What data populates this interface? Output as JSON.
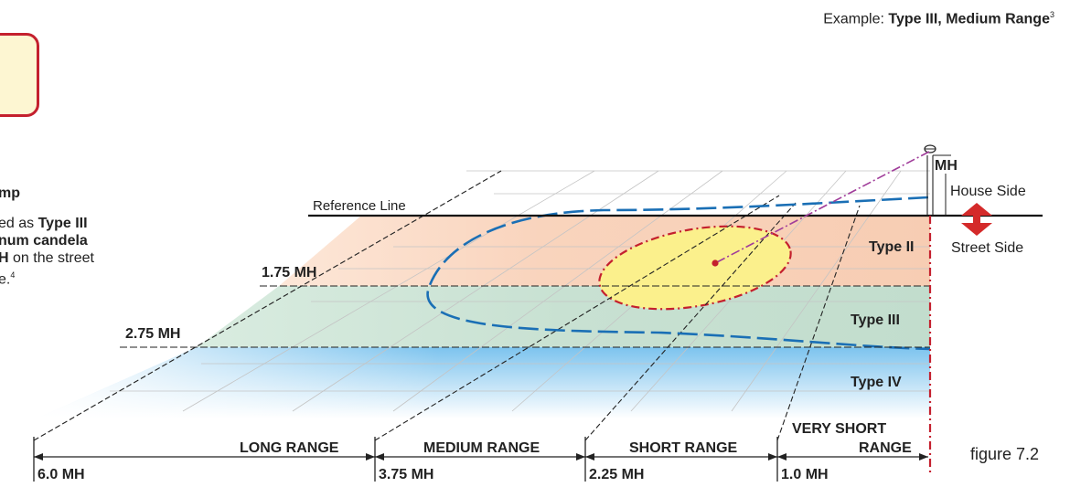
{
  "example": {
    "prefix": "Example: ",
    "value": "Type III, Medium Range",
    "sup": "3"
  },
  "left_fragments": {
    "heading": "mp",
    "line1_a": "ed  as  ",
    "line1_b": "Type III",
    "line2": "num  candela",
    "line3_a": "H",
    "line3_b": " on the street",
    "line4_a": "e.",
    "line4_sup": "4"
  },
  "labels": {
    "reference_line": "Reference Line",
    "mh": "MH",
    "house_side": "House Side",
    "street_side": "Street Side",
    "line_175": "1.75 MH",
    "line_275": "2.75 MH",
    "type_ii": "Type II",
    "type_iii": "Type III",
    "type_iv": "Type IV"
  },
  "ranges": [
    {
      "name": "LONG RANGE",
      "distance": "6.0 MH"
    },
    {
      "name": "MEDIUM RANGE",
      "distance": "3.75 MH"
    },
    {
      "name": "SHORT RANGE",
      "distance": "2.25 MH"
    },
    {
      "name_line1": "VERY SHORT",
      "name_line2": "RANGE",
      "distance": "1.0 MH"
    }
  ],
  "figure_label": "figure 7.2",
  "colors": {
    "type_ii_zone": "#f8d1b8",
    "type_iii_zone": "#c9e2d4",
    "type_iv_zone": "#8fcdf0",
    "candela_fill": "#fbf08c",
    "red_line": "#c4202e",
    "blue_curve": "#1a6fb5",
    "pole_beam": "#a03c9a",
    "arrow_red": "#d42a2a"
  }
}
